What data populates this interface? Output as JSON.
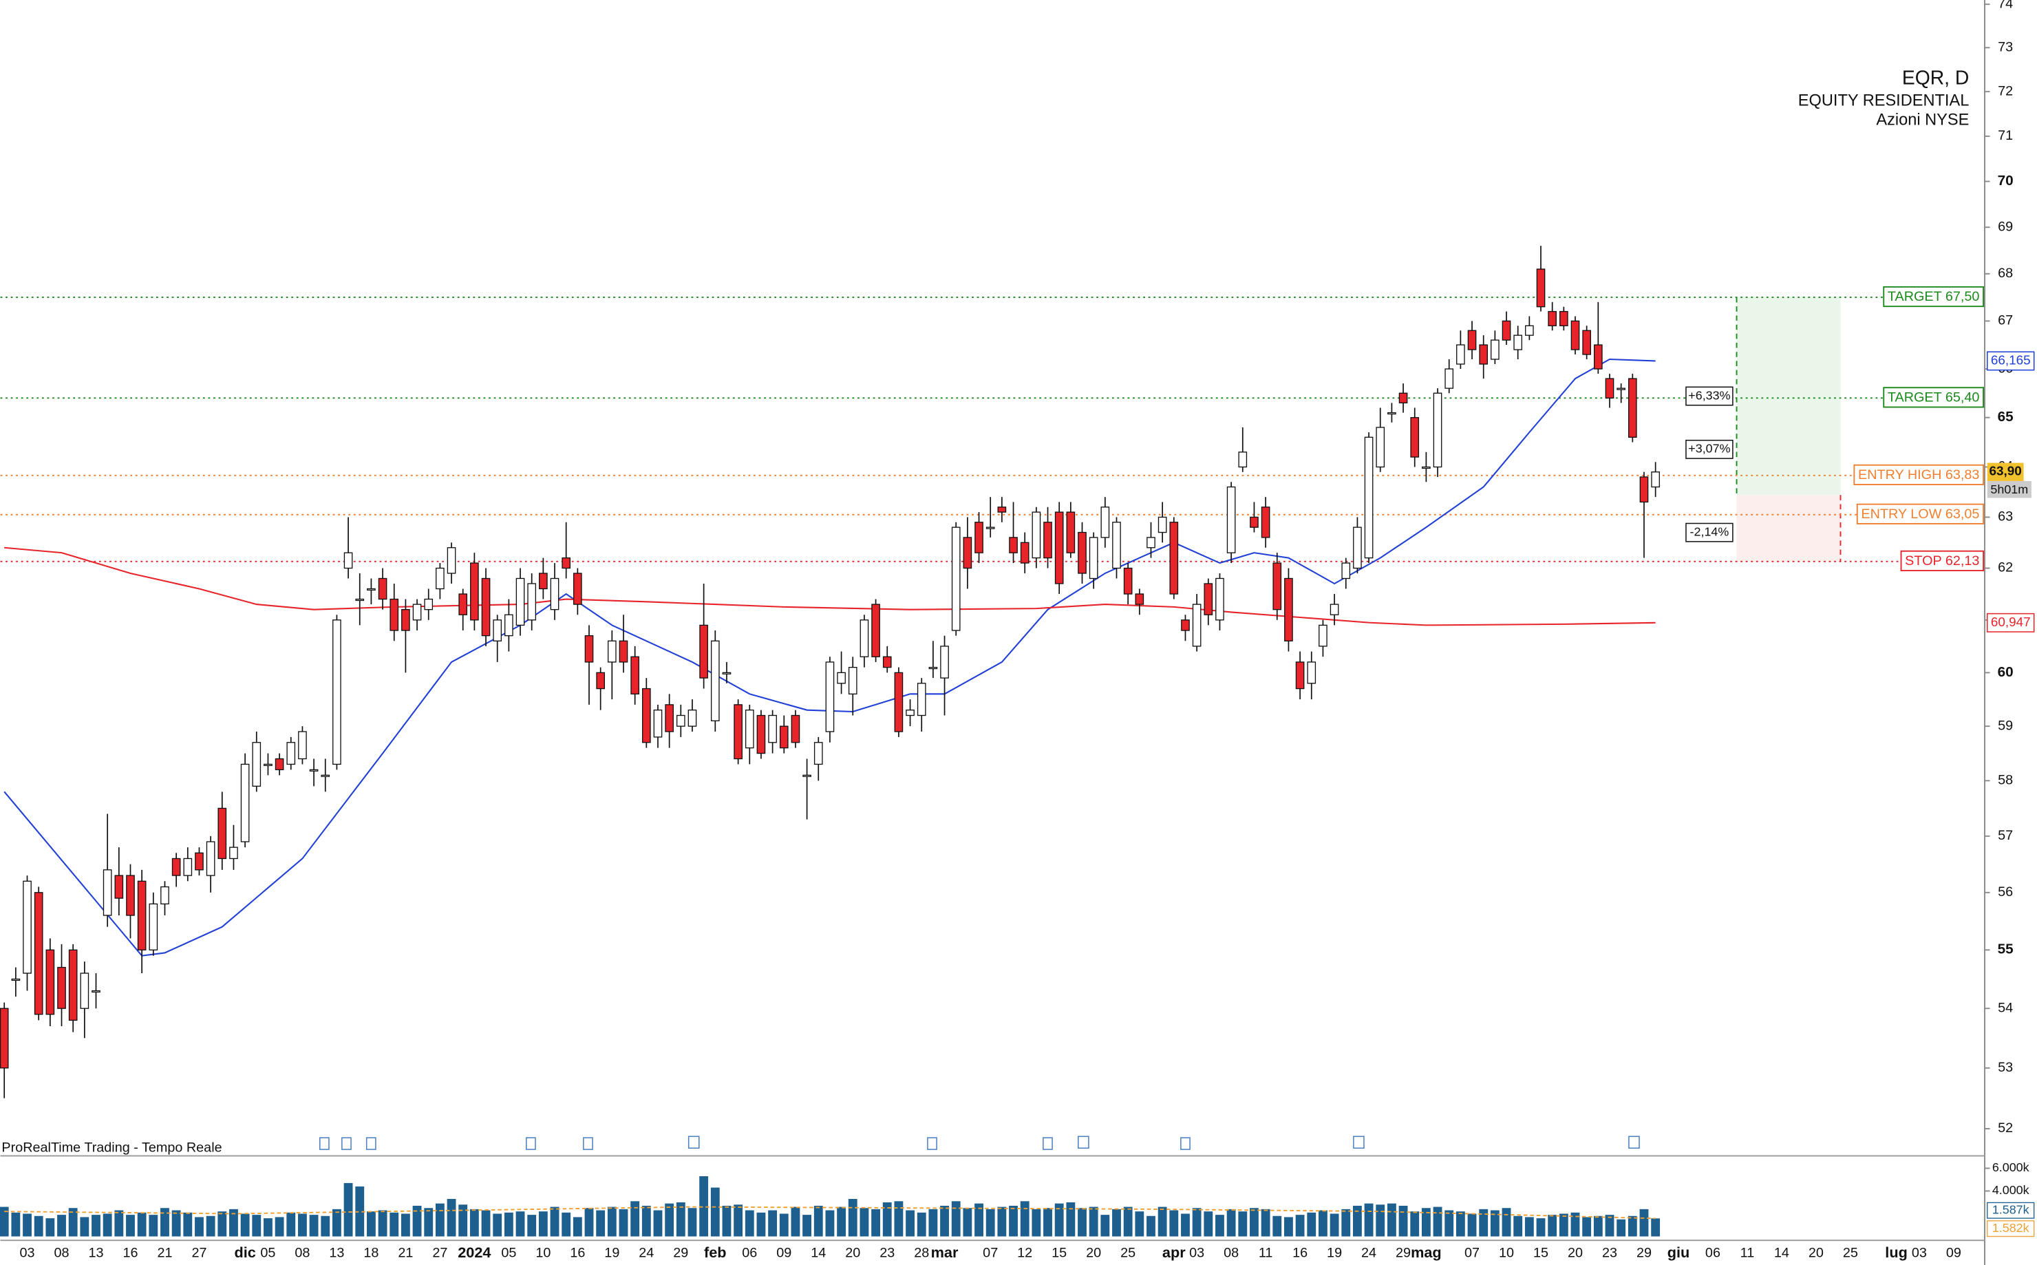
{
  "chart_data": {
    "type": "candlestick",
    "symbol": "EQR, D",
    "name": "EQUITY RESIDENTIAL",
    "exchange": "Azioni NYSE",
    "source": "ProRealTime Trading - Tempo Reale",
    "log_scale": true,
    "ylim": [
      51.6,
      74.1
    ],
    "yticks": [
      52,
      53,
      54,
      55,
      56,
      57,
      58,
      59,
      60,
      61,
      62,
      63,
      64,
      65,
      66,
      67,
      68,
      69,
      70,
      71,
      72,
      73,
      74
    ],
    "categories": [
      null,
      null,
      "03",
      null,
      null,
      "08",
      null,
      null,
      "13",
      null,
      null,
      "16",
      null,
      null,
      "21",
      null,
      null,
      "27",
      null,
      null,
      null,
      "dic",
      null,
      "05",
      null,
      null,
      "08",
      null,
      null,
      "13",
      null,
      null,
      "18",
      null,
      null,
      "21",
      null,
      null,
      "27",
      null,
      null,
      "2024",
      null,
      null,
      "05",
      null,
      null,
      "10",
      null,
      null,
      "16",
      null,
      null,
      "19",
      null,
      null,
      "24",
      null,
      null,
      "29",
      null,
      null,
      "feb",
      null,
      null,
      "06",
      null,
      null,
      "09",
      null,
      null,
      "14",
      null,
      null,
      "20",
      null,
      null,
      "23",
      null,
      null,
      "28",
      null,
      "mar",
      null,
      null,
      null,
      "07",
      null,
      null,
      "12",
      null,
      null,
      "15",
      null,
      null,
      "20",
      null,
      null,
      "25",
      null,
      null,
      null,
      "apr",
      null,
      "03",
      null,
      null,
      "08",
      null,
      null,
      "11",
      null,
      null,
      "16",
      null,
      null,
      "19",
      null,
      null,
      "24",
      null,
      null,
      "29",
      null,
      "mag",
      null,
      null,
      null,
      "07",
      null,
      null,
      "10",
      null,
      null,
      "15",
      null,
      null,
      "20",
      null,
      null,
      "23",
      null,
      null,
      "29",
      null,
      null,
      "giu",
      null,
      null,
      "06",
      null,
      null,
      "11",
      null,
      null,
      "14",
      null,
      null,
      "20",
      null,
      null,
      "25",
      null,
      null,
      null,
      "lug",
      null,
      "03",
      null,
      null,
      "09"
    ],
    "ohlc": [
      [
        54.0,
        54.1,
        52.5,
        53.0
      ],
      [
        54.5,
        54.7,
        54.2,
        54.5
      ],
      [
        54.6,
        56.3,
        54.3,
        56.2
      ],
      [
        56.0,
        56.1,
        53.8,
        53.9
      ],
      [
        55.0,
        55.2,
        53.7,
        53.9
      ],
      [
        54.7,
        55.1,
        53.7,
        54.0
      ],
      [
        55.0,
        55.1,
        53.6,
        53.8
      ],
      [
        54.0,
        54.8,
        53.5,
        54.6
      ],
      [
        54.3,
        54.6,
        54.0,
        54.3
      ],
      [
        55.6,
        57.4,
        55.4,
        56.4
      ],
      [
        56.3,
        56.8,
        55.6,
        55.9
      ],
      [
        56.3,
        56.5,
        55.2,
        55.6
      ],
      [
        56.2,
        56.4,
        54.6,
        55.0
      ],
      [
        55.0,
        56.0,
        54.9,
        55.8
      ],
      [
        55.8,
        56.2,
        55.6,
        56.1
      ],
      [
        56.6,
        56.7,
        56.1,
        56.3
      ],
      [
        56.3,
        56.8,
        56.2,
        56.6
      ],
      [
        56.7,
        56.8,
        56.3,
        56.4
      ],
      [
        56.3,
        57.0,
        56.0,
        56.9
      ],
      [
        57.5,
        57.8,
        56.4,
        56.6
      ],
      [
        56.6,
        57.2,
        56.4,
        56.8
      ],
      [
        56.9,
        58.5,
        56.8,
        58.3
      ],
      [
        57.9,
        58.9,
        57.8,
        58.7
      ],
      [
        58.3,
        58.5,
        58.1,
        58.3
      ],
      [
        58.4,
        58.5,
        58.1,
        58.2
      ],
      [
        58.3,
        58.8,
        58.2,
        58.7
      ],
      [
        58.4,
        59.0,
        58.3,
        58.9
      ],
      [
        58.2,
        58.4,
        57.9,
        58.2
      ],
      [
        58.1,
        58.4,
        57.8,
        58.1
      ],
      [
        58.3,
        61.1,
        58.2,
        61.0
      ],
      [
        62.0,
        63.0,
        61.8,
        62.3
      ],
      [
        61.4,
        61.9,
        60.9,
        61.4
      ],
      [
        61.6,
        61.8,
        61.3,
        61.6
      ],
      [
        61.8,
        62.0,
        61.2,
        61.4
      ],
      [
        61.4,
        61.7,
        60.6,
        60.8
      ],
      [
        61.2,
        61.4,
        60.0,
        60.8
      ],
      [
        61.0,
        61.4,
        60.8,
        61.3
      ],
      [
        61.2,
        61.6,
        61.0,
        61.4
      ],
      [
        61.6,
        62.1,
        61.4,
        62.0
      ],
      [
        61.9,
        62.5,
        61.7,
        62.4
      ],
      [
        61.5,
        61.6,
        60.8,
        61.1
      ],
      [
        62.1,
        62.3,
        60.8,
        61.0
      ],
      [
        61.8,
        62.0,
        60.5,
        60.7
      ],
      [
        60.6,
        61.1,
        60.2,
        61.0
      ],
      [
        60.7,
        61.4,
        60.4,
        61.1
      ],
      [
        60.9,
        62.0,
        60.7,
        61.8
      ],
      [
        61.0,
        61.9,
        60.8,
        61.7
      ],
      [
        61.9,
        62.2,
        61.4,
        61.6
      ],
      [
        61.2,
        62.1,
        61.0,
        61.8
      ],
      [
        62.2,
        62.9,
        61.8,
        62.0
      ],
      [
        61.9,
        62.0,
        61.1,
        61.3
      ],
      [
        60.7,
        60.9,
        59.4,
        60.2
      ],
      [
        60.0,
        60.1,
        59.3,
        59.7
      ],
      [
        60.2,
        60.8,
        59.5,
        60.6
      ],
      [
        60.6,
        61.1,
        60.0,
        60.2
      ],
      [
        60.3,
        60.5,
        59.4,
        59.6
      ],
      [
        59.7,
        59.9,
        58.6,
        58.7
      ],
      [
        58.8,
        59.4,
        58.6,
        59.3
      ],
      [
        59.4,
        59.6,
        58.6,
        58.9
      ],
      [
        59.0,
        59.4,
        58.8,
        59.2
      ],
      [
        59.0,
        59.5,
        58.9,
        59.3
      ],
      [
        60.9,
        61.7,
        59.7,
        59.9
      ],
      [
        59.1,
        60.8,
        58.9,
        60.6
      ],
      [
        60.0,
        60.2,
        59.8,
        60.0
      ],
      [
        59.4,
        59.5,
        58.3,
        58.4
      ],
      [
        58.6,
        59.4,
        58.3,
        59.3
      ],
      [
        59.2,
        59.3,
        58.4,
        58.5
      ],
      [
        58.7,
        59.3,
        58.5,
        59.2
      ],
      [
        59.0,
        59.2,
        58.5,
        58.6
      ],
      [
        59.2,
        59.3,
        58.6,
        58.7
      ],
      [
        58.1,
        58.4,
        57.3,
        58.1
      ],
      [
        58.3,
        58.8,
        58.0,
        58.7
      ],
      [
        58.9,
        60.3,
        58.7,
        60.2
      ],
      [
        59.8,
        60.4,
        59.6,
        60.0
      ],
      [
        59.6,
        60.3,
        59.2,
        60.1
      ],
      [
        60.3,
        61.1,
        60.1,
        61.0
      ],
      [
        61.3,
        61.4,
        60.2,
        60.3
      ],
      [
        60.3,
        60.5,
        60.0,
        60.1
      ],
      [
        60.0,
        60.1,
        58.8,
        58.9
      ],
      [
        59.2,
        59.5,
        59.0,
        59.3
      ],
      [
        59.2,
        59.9,
        58.9,
        59.8
      ],
      [
        60.1,
        60.6,
        59.9,
        60.1
      ],
      [
        59.9,
        60.7,
        59.2,
        60.5
      ],
      [
        60.8,
        62.9,
        60.7,
        62.8
      ],
      [
        62.6,
        63.0,
        61.6,
        62.0
      ],
      [
        62.9,
        63.1,
        62.1,
        62.3
      ],
      [
        62.8,
        63.4,
        62.6,
        62.8
      ],
      [
        63.2,
        63.4,
        62.9,
        63.1
      ],
      [
        62.6,
        63.3,
        62.1,
        62.3
      ],
      [
        62.5,
        62.7,
        61.9,
        62.1
      ],
      [
        62.2,
        63.2,
        62.0,
        63.1
      ],
      [
        62.9,
        63.2,
        62.0,
        62.2
      ],
      [
        63.1,
        63.3,
        61.5,
        61.7
      ],
      [
        63.1,
        63.3,
        62.2,
        62.3
      ],
      [
        62.7,
        62.9,
        61.7,
        61.9
      ],
      [
        61.8,
        62.7,
        61.6,
        62.6
      ],
      [
        62.6,
        63.4,
        62.4,
        63.2
      ],
      [
        62.0,
        63.0,
        61.8,
        62.9
      ],
      [
        62.0,
        62.1,
        61.3,
        61.5
      ],
      [
        61.5,
        61.6,
        61.1,
        61.3
      ],
      [
        62.4,
        62.9,
        62.2,
        62.6
      ],
      [
        62.7,
        63.3,
        62.5,
        63.0
      ],
      [
        62.9,
        63.0,
        61.4,
        61.5
      ],
      [
        61.0,
        61.1,
        60.6,
        60.8
      ],
      [
        60.5,
        61.5,
        60.4,
        61.3
      ],
      [
        61.7,
        61.8,
        60.9,
        61.1
      ],
      [
        61.0,
        61.9,
        60.8,
        61.8
      ],
      [
        62.3,
        63.7,
        62.1,
        63.6
      ],
      [
        64.0,
        64.8,
        63.9,
        64.3
      ],
      [
        63.0,
        63.3,
        62.7,
        62.8
      ],
      [
        63.2,
        63.4,
        62.4,
        62.6
      ],
      [
        62.1,
        62.3,
        61.0,
        61.2
      ],
      [
        61.8,
        62.0,
        60.4,
        60.6
      ],
      [
        60.2,
        60.4,
        59.5,
        59.7
      ],
      [
        59.8,
        60.4,
        59.5,
        60.2
      ],
      [
        60.5,
        61.0,
        60.3,
        60.9
      ],
      [
        61.1,
        61.5,
        60.9,
        61.3
      ],
      [
        61.8,
        62.2,
        61.6,
        62.1
      ],
      [
        62.0,
        63.0,
        61.9,
        62.8
      ],
      [
        62.2,
        64.7,
        62.1,
        64.6
      ],
      [
        64.0,
        65.2,
        63.9,
        64.8
      ],
      [
        65.1,
        65.3,
        64.9,
        65.1
      ],
      [
        65.5,
        65.7,
        65.1,
        65.3
      ],
      [
        65.0,
        65.2,
        64.0,
        64.2
      ],
      [
        64.0,
        64.3,
        63.7,
        64.0
      ],
      [
        64.0,
        65.6,
        63.8,
        65.5
      ],
      [
        65.6,
        66.2,
        65.5,
        66.0
      ],
      [
        66.1,
        66.8,
        66.0,
        66.5
      ],
      [
        66.8,
        67.0,
        66.2,
        66.4
      ],
      [
        66.5,
        66.7,
        65.8,
        66.1
      ],
      [
        66.2,
        66.8,
        66.1,
        66.6
      ],
      [
        67.0,
        67.2,
        66.5,
        66.6
      ],
      [
        66.4,
        66.9,
        66.2,
        66.7
      ],
      [
        66.7,
        67.1,
        66.6,
        66.9
      ],
      [
        68.1,
        68.6,
        67.2,
        67.3
      ],
      [
        67.2,
        67.4,
        66.8,
        66.9
      ],
      [
        67.2,
        67.3,
        66.8,
        66.9
      ],
      [
        67.0,
        67.1,
        66.3,
        66.4
      ],
      [
        66.8,
        66.9,
        66.2,
        66.3
      ],
      [
        66.5,
        67.4,
        65.9,
        66.0
      ],
      [
        65.8,
        65.9,
        65.2,
        65.4
      ],
      [
        65.6,
        65.7,
        65.3,
        65.6
      ],
      [
        65.8,
        65.9,
        64.5,
        64.6
      ],
      [
        63.8,
        63.9,
        62.2,
        63.3
      ],
      [
        63.6,
        64.1,
        63.4,
        63.9
      ]
    ],
    "up_color": "#ffffff",
    "down_color": "#e8242b",
    "last_label": "63,90",
    "timer": "5h01m",
    "overlays": [
      {
        "color": "#1f3fd6",
        "x": [
          0,
          12,
          14,
          19,
          26,
          33,
          39,
          45,
          49,
          53,
          60,
          65,
          70,
          74,
          79,
          82,
          87,
          91,
          96,
          99,
          102,
          106,
          109,
          112,
          116,
          120,
          124,
          129,
          133,
          137,
          140,
          144
        ],
        "values": [
          57.8,
          54.9,
          54.95,
          55.4,
          56.6,
          58.5,
          60.2,
          60.9,
          61.5,
          60.9,
          60.2,
          59.6,
          59.3,
          59.27,
          59.6,
          59.6,
          60.2,
          61.2,
          61.9,
          62.2,
          62.5,
          62.1,
          62.3,
          62.2,
          61.7,
          62.2,
          62.8,
          63.6,
          64.7,
          65.8,
          66.2,
          66.165
        ],
        "last_label": "66,165"
      },
      {
        "color": "#e8242b",
        "x": [
          0,
          5,
          11,
          17,
          22,
          27,
          34,
          45,
          49,
          56,
          68,
          79,
          90,
          96,
          102,
          107,
          113,
          119,
          124,
          136,
          144
        ],
        "values": [
          62.4,
          62.3,
          61.9,
          61.6,
          61.3,
          61.2,
          61.25,
          61.3,
          61.4,
          61.35,
          61.25,
          61.2,
          61.22,
          61.3,
          61.25,
          61.15,
          61.05,
          60.95,
          60.9,
          60.92,
          60.947
        ],
        "last_label": "60,947"
      }
    ],
    "levels": [
      {
        "label": "TARGET 67,50",
        "value": 67.5,
        "color": "#1a8a1a"
      },
      {
        "label": "TARGET 65,40",
        "value": 65.4,
        "color": "#1a8a1a"
      },
      {
        "label": "ENTRY HIGH 63,83",
        "value": 63.83,
        "color": "#f08030"
      },
      {
        "label": "ENTRY LOW 63,05",
        "value": 63.05,
        "color": "#f08030"
      },
      {
        "label": "STOP 62,13",
        "value": 62.13,
        "color": "#e8242b"
      }
    ],
    "pct_labels": [
      "+6,33%",
      "+3,07%",
      "-2,14%"
    ],
    "volume": {
      "color": "#1d5f8e",
      "ylim": [
        0,
        6860
      ],
      "yticks": [
        {
          "value": 6000,
          "label": "6.000k"
        },
        {
          "value": 4000,
          "label": "4.000k"
        }
      ],
      "values": [
        2600,
        2100,
        2000,
        1800,
        1600,
        1900,
        2500,
        1700,
        1900,
        2000,
        2300,
        1900,
        2100,
        1900,
        2500,
        2300,
        2100,
        1700,
        1800,
        2200,
        2400,
        2000,
        1900,
        1600,
        1700,
        2100,
        2000,
        1900,
        1800,
        2400,
        4700,
        4400,
        2200,
        2300,
        2100,
        2000,
        2700,
        2500,
        2900,
        3300,
        2800,
        2400,
        2300,
        2000,
        2100,
        2200,
        1900,
        2200,
        2600,
        2100,
        1700,
        2500,
        2300,
        2600,
        2400,
        3100,
        2700,
        2300,
        2900,
        3000,
        2500,
        5300,
        4300,
        2700,
        2800,
        2300,
        2100,
        2300,
        2000,
        2600,
        1900,
        2700,
        2300,
        2600,
        3300,
        2500,
        2400,
        3000,
        3100,
        2300,
        2100,
        2400,
        2700,
        3100,
        2500,
        2900,
        2400,
        2600,
        2700,
        3100,
        2400,
        2500,
        2900,
        3000,
        2500,
        2600,
        1900,
        2400,
        2600,
        2200,
        1800,
        2600,
        2300,
        2000,
        2500,
        2200,
        1900,
        2400,
        2200,
        2500,
        2400,
        1800,
        1700,
        1900,
        2100,
        2300,
        2000,
        2400,
        2700,
        2900,
        2800,
        2900,
        2700,
        2200,
        2500,
        2600,
        2300,
        2200,
        2000,
        2400,
        2300,
        2500,
        1800,
        1700,
        1600,
        1900,
        2000,
        2100,
        1700,
        1800,
        1900,
        1500,
        1800,
        2400,
        1587
      ],
      "last_label": "1.587k",
      "ma": {
        "color": "#f0a030",
        "x": [
          0,
          20,
          40,
          60,
          80,
          100,
          120,
          144
        ],
        "values": [
          2200,
          2000,
          2300,
          2600,
          2500,
          2400,
          2200,
          1582
        ],
        "last_label": "1.582k"
      }
    }
  }
}
